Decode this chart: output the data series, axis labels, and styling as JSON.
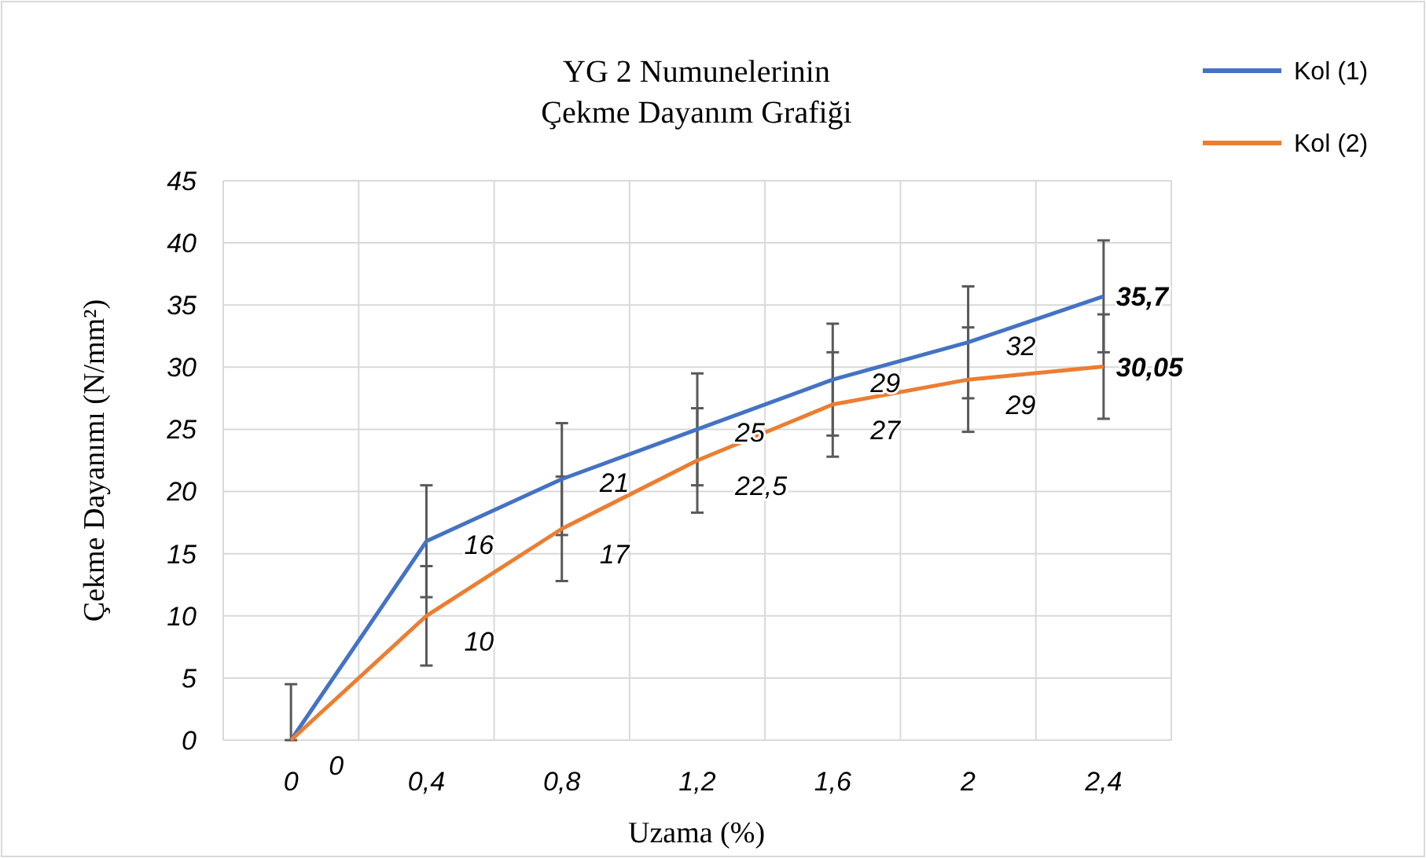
{
  "chart_data": {
    "type": "line",
    "title": "YG 2 Numunelerinin\nÇekme Dayanım Grafiği",
    "xlabel": "Uzama (%)",
    "ylabel": "Çekme Dayanımı (N/mm²)",
    "categories": [
      "0",
      "0,4",
      "0,8",
      "1,2",
      "1,6",
      "2",
      "2,4"
    ],
    "series": [
      {
        "name": "Kol (1)",
        "color": "#4472c4",
        "values": [
          0,
          16,
          21,
          25,
          29,
          32,
          35.7
        ],
        "value_labels": [
          null,
          "16",
          "21",
          "25",
          "29",
          "32",
          "35,7"
        ],
        "errors": [
          [
            0,
            4.5
          ],
          4.5,
          4.5,
          4.5,
          4.5,
          4.5,
          4.5
        ]
      },
      {
        "name": "Kol (2)",
        "color": "#ed7d31",
        "values": [
          0,
          10,
          17,
          22.5,
          27,
          29,
          30.05
        ],
        "value_labels": [
          "0",
          "10",
          "17",
          "22,5",
          "27",
          "29",
          "30,05"
        ],
        "errors": [
          null,
          4,
          4.2,
          4.2,
          4.2,
          4.2,
          4.2
        ]
      }
    ],
    "ylim": [
      0,
      45
    ],
    "yticks": [
      0,
      5,
      10,
      15,
      20,
      25,
      30,
      35,
      40,
      45
    ],
    "grid": true,
    "legend": "top right",
    "marker": "none",
    "line_style": "solid"
  }
}
